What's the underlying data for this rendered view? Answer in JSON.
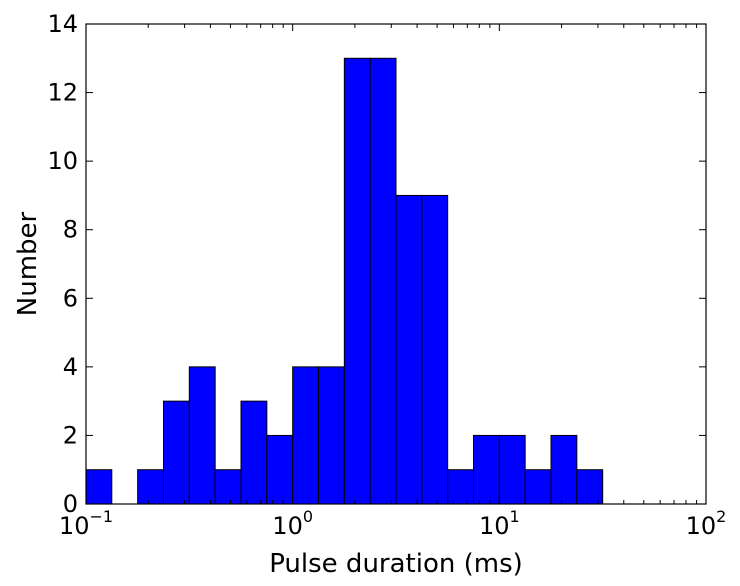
{
  "chart_data": {
    "type": "bar",
    "xscale": "log",
    "xlabel": "Pulse duration (ms)",
    "ylabel": "Number",
    "xlim": [
      0.1,
      100
    ],
    "ylim": [
      0,
      14
    ],
    "y_ticks": [
      "0",
      "2",
      "4",
      "6",
      "8",
      "10",
      "12",
      "14"
    ],
    "x_ticks": [
      {
        "base": "10",
        "exp": "−1"
      },
      {
        "base": "10",
        "exp": "0"
      },
      {
        "base": "10",
        "exp": "1"
      },
      {
        "base": "10",
        "exp": "2"
      }
    ],
    "bar_color": "#0000ff",
    "edge_color": "#000000",
    "bins": [
      {
        "lo": 0.1,
        "hi": 0.1333,
        "count": 1
      },
      {
        "lo": 0.1333,
        "hi": 0.1778,
        "count": 0
      },
      {
        "lo": 0.1778,
        "hi": 0.2371,
        "count": 1
      },
      {
        "lo": 0.2371,
        "hi": 0.3162,
        "count": 3
      },
      {
        "lo": 0.3162,
        "hi": 0.4217,
        "count": 4
      },
      {
        "lo": 0.4217,
        "hi": 0.5623,
        "count": 1
      },
      {
        "lo": 0.5623,
        "hi": 0.7499,
        "count": 3
      },
      {
        "lo": 0.7499,
        "hi": 1.0,
        "count": 2
      },
      {
        "lo": 1.0,
        "hi": 1.3335,
        "count": 4
      },
      {
        "lo": 1.3335,
        "hi": 1.7783,
        "count": 4
      },
      {
        "lo": 1.7783,
        "hi": 2.3714,
        "count": 13
      },
      {
        "lo": 2.3714,
        "hi": 3.1623,
        "count": 13
      },
      {
        "lo": 3.1623,
        "hi": 4.217,
        "count": 9
      },
      {
        "lo": 4.217,
        "hi": 5.6234,
        "count": 9
      },
      {
        "lo": 5.6234,
        "hi": 7.4989,
        "count": 1
      },
      {
        "lo": 7.4989,
        "hi": 10.0,
        "count": 2
      },
      {
        "lo": 10.0,
        "hi": 13.335,
        "count": 2
      },
      {
        "lo": 13.335,
        "hi": 17.783,
        "count": 1
      },
      {
        "lo": 17.783,
        "hi": 23.714,
        "count": 2
      },
      {
        "lo": 23.714,
        "hi": 31.623,
        "count": 1
      }
    ]
  }
}
